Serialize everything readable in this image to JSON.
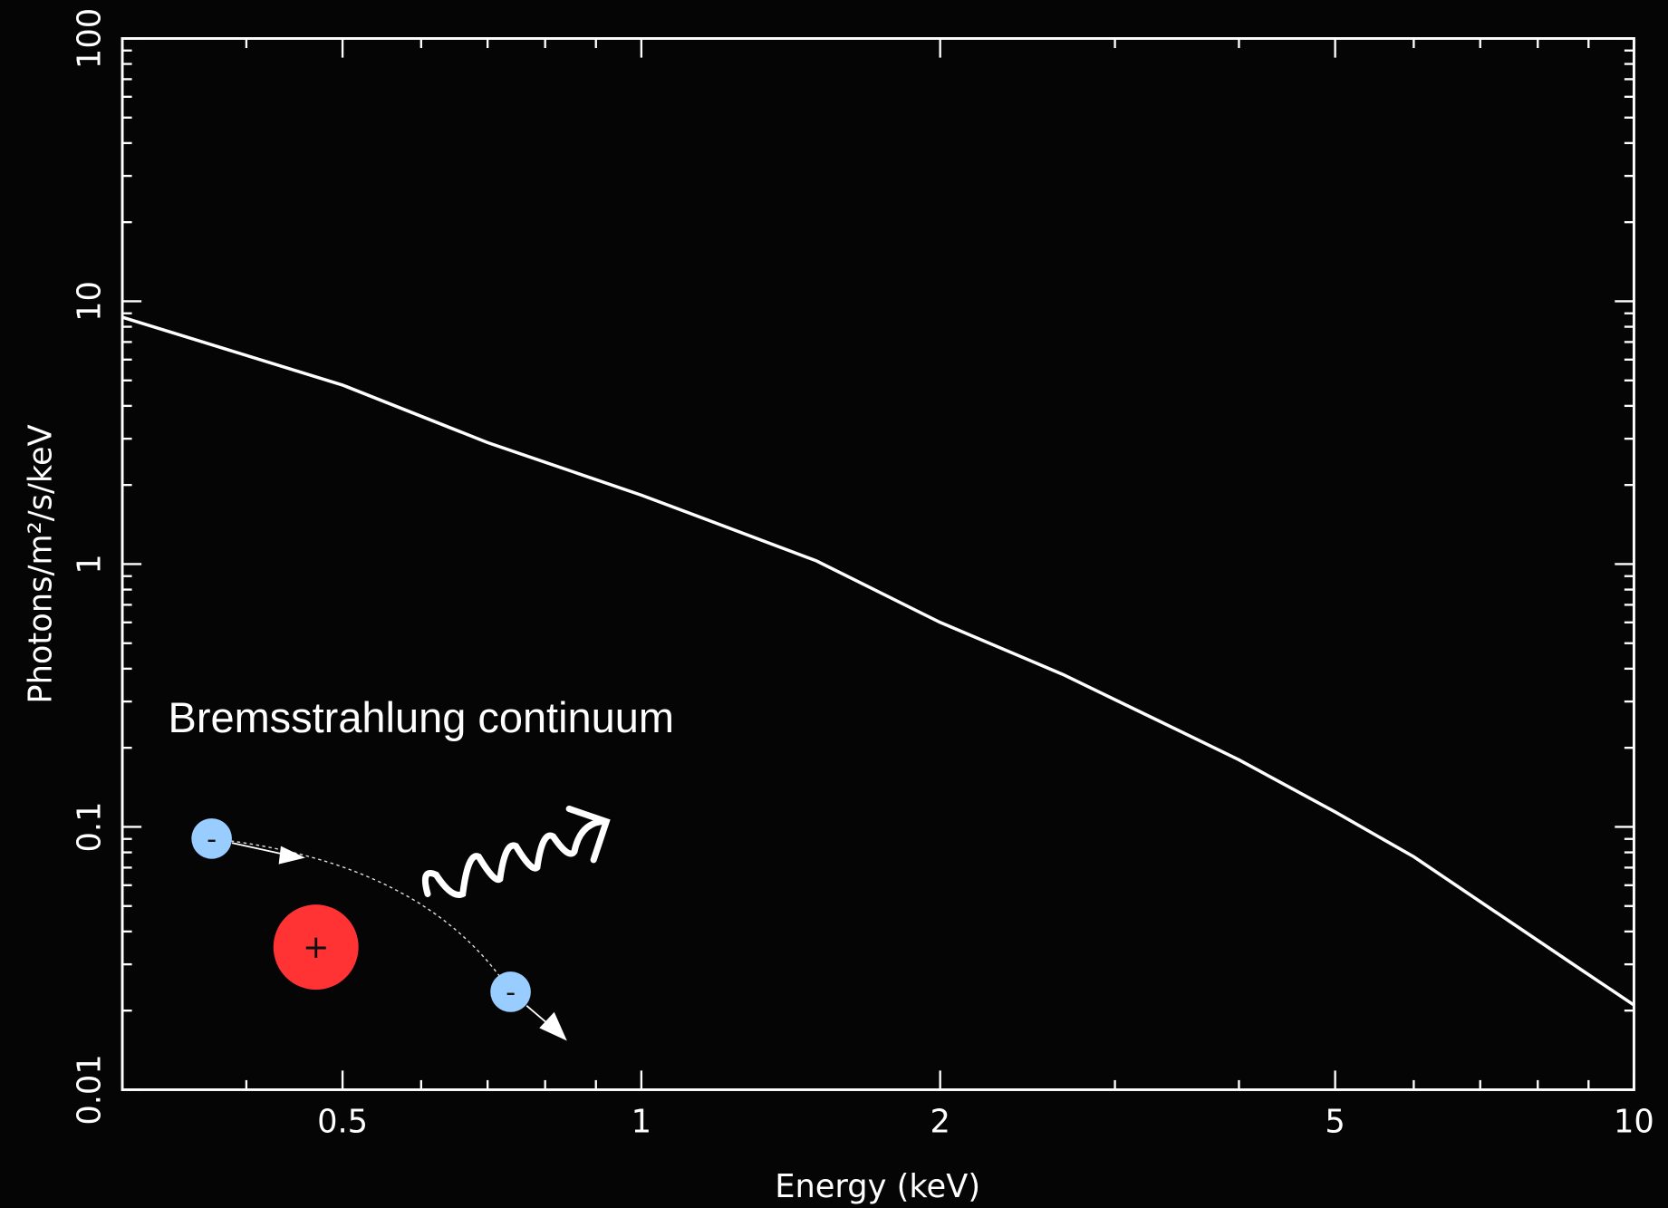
{
  "chart_data": {
    "type": "line",
    "xlabel": "Energy (keV)",
    "ylabel": "Photons/m²/s/keV",
    "xlog": true,
    "ylog": true,
    "color": "#ffffff",
    "x": [
      0.3,
      0.5,
      0.7,
      1,
      1.5,
      2,
      2.66,
      3.5,
      4,
      5,
      6,
      8.85,
      10
    ],
    "values": [
      8.7,
      4.8,
      2.9,
      1.83,
      1.03,
      0.6,
      0.38,
      0.23,
      0.18,
      0.114,
      0.077,
      0.0286,
      0.021
    ],
    "xlim": [
      0.3,
      10
    ],
    "ylim": [
      0.01,
      100
    ],
    "xticks": [
      0.5,
      1,
      2,
      5,
      10
    ],
    "xminorticks": [
      0.4,
      0.6,
      0.7,
      0.8,
      0.9,
      3,
      4,
      6,
      7,
      8,
      9
    ],
    "yticks": [
      0.01,
      0.1,
      1,
      10,
      100
    ],
    "yminorticks": [
      0.02,
      0.03,
      0.04,
      0.05,
      0.06,
      0.07,
      0.08,
      0.09,
      0.2,
      0.3,
      0.4,
      0.5,
      0.6,
      0.7,
      0.8,
      0.9,
      2,
      3,
      4,
      5,
      6,
      7,
      8,
      9,
      20,
      30,
      40,
      50,
      60,
      70,
      80,
      90
    ],
    "annotations": {
      "text": "Bremsstrahlung continuum",
      "electron": "-",
      "nucleus": "+"
    }
  }
}
